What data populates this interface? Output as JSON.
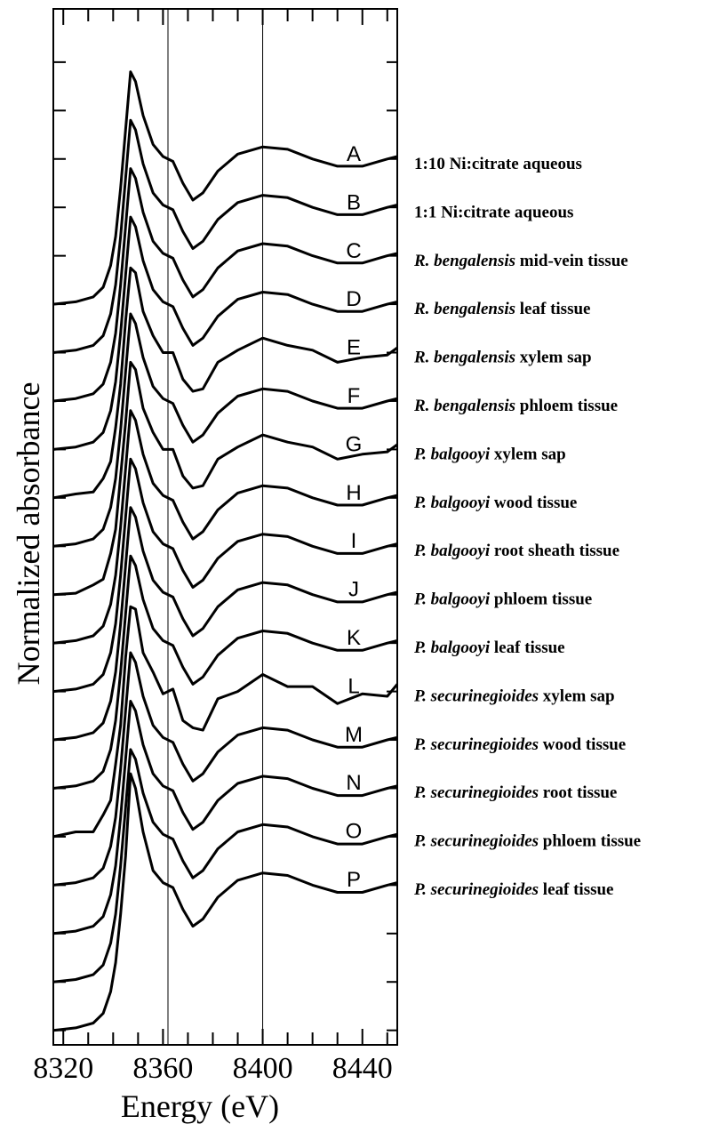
{
  "chart_data": {
    "type": "line",
    "x_label": "Energy (eV)",
    "y_label": "Normalized absorbance",
    "xlim": [
      8316,
      8454
    ],
    "ylim": [
      -0.3,
      21.1
    ],
    "xticks": [
      8320,
      8360,
      8400,
      8440
    ],
    "x_minor_ticks": [
      8330,
      8340,
      8350,
      8370,
      8380,
      8390,
      8410,
      8420,
      8430,
      8450
    ],
    "yticks": [
      0,
      1,
      2,
      3,
      4,
      5,
      6,
      7,
      8,
      9,
      10,
      11,
      12,
      13,
      14,
      15,
      16,
      17,
      18,
      19,
      20
    ],
    "vlines": [
      8362,
      8400
    ],
    "color": "#000000",
    "x": [
      8316,
      8325,
      8332,
      8336,
      8339,
      8341,
      8343,
      8345,
      8347,
      8349,
      8352,
      8356,
      8360,
      8364,
      8368,
      8372,
      8376,
      8382,
      8390,
      8400,
      8410,
      8420,
      8430,
      8440,
      8450,
      8454
    ],
    "series": [
      {
        "name": "A",
        "description": [
          "1:10 Ni:citrate aqueous"
        ],
        "values": [
          15,
          15.05,
          15.15,
          15.35,
          15.8,
          16.4,
          17.4,
          18.6,
          19.8,
          19.6,
          18.9,
          18.3,
          18.05,
          17.95,
          17.5,
          17.15,
          17.3,
          17.75,
          18.1,
          18.25,
          18.2,
          18.0,
          17.85,
          17.85,
          18.0,
          18.05
        ]
      },
      {
        "name": "B",
        "description": [
          "1:1 Ni:citrate aqueous"
        ],
        "values": [
          14,
          14.05,
          14.15,
          14.35,
          14.8,
          15.4,
          16.4,
          17.6,
          18.8,
          18.6,
          17.9,
          17.3,
          17.05,
          16.95,
          16.5,
          16.15,
          16.3,
          16.75,
          17.1,
          17.25,
          17.2,
          17.0,
          16.85,
          16.85,
          17.0,
          17.05
        ]
      },
      {
        "name": "C",
        "description": [
          "R. bengalensis",
          " mid-vein tissue"
        ],
        "values": [
          13,
          13.05,
          13.15,
          13.35,
          13.8,
          14.4,
          15.4,
          16.6,
          17.8,
          17.6,
          16.9,
          16.3,
          16.05,
          15.95,
          15.5,
          15.15,
          15.3,
          15.75,
          16.1,
          16.25,
          16.2,
          16.0,
          15.85,
          15.85,
          16.0,
          16.05
        ]
      },
      {
        "name": "D",
        "description": [
          "R. bengalensis",
          " leaf tissue"
        ],
        "values": [
          12,
          12.05,
          12.15,
          12.35,
          12.8,
          13.4,
          14.4,
          15.6,
          16.8,
          16.6,
          15.9,
          15.3,
          15.05,
          14.95,
          14.5,
          14.15,
          14.3,
          14.75,
          15.1,
          15.25,
          15.2,
          15.0,
          14.85,
          14.85,
          15.0,
          15.05
        ]
      },
      {
        "name": "E",
        "description": [
          "R. bengalensis",
          " xylem sap"
        ],
        "values": [
          11,
          11.08,
          11.12,
          11.4,
          11.75,
          12.45,
          13.35,
          14.65,
          15.75,
          15.65,
          14.85,
          14.35,
          14.0,
          14.0,
          13.45,
          13.2,
          13.25,
          13.8,
          14.05,
          14.3,
          14.15,
          14.05,
          13.8,
          13.9,
          13.95,
          14.1
        ]
      },
      {
        "name": "F",
        "description": [
          "R. bengalensis",
          " phloem tissue"
        ],
        "values": [
          10,
          10.05,
          10.15,
          10.35,
          10.8,
          11.4,
          12.4,
          13.6,
          14.8,
          14.6,
          13.9,
          13.3,
          13.05,
          12.95,
          12.5,
          12.15,
          12.3,
          12.75,
          13.1,
          13.25,
          13.2,
          13.0,
          12.85,
          12.85,
          13.0,
          13.05
        ]
      },
      {
        "name": "G",
        "description": [
          "P. balgooyi",
          " xylem sap"
        ],
        "values": [
          9,
          9.03,
          9.2,
          9.32,
          9.85,
          10.35,
          11.45,
          12.55,
          13.8,
          13.65,
          12.85,
          12.35,
          12.0,
          12.0,
          11.45,
          11.2,
          11.25,
          11.8,
          12.05,
          12.3,
          12.15,
          12.05,
          11.8,
          11.9,
          11.95,
          12.1
        ]
      },
      {
        "name": "H",
        "description": [
          "P. balgooyi",
          " wood tissue"
        ],
        "values": [
          8,
          8.05,
          8.15,
          8.35,
          8.8,
          9.4,
          10.4,
          11.6,
          12.8,
          12.6,
          11.9,
          11.3,
          11.05,
          10.95,
          10.5,
          10.15,
          10.3,
          10.75,
          11.1,
          11.25,
          11.2,
          11.0,
          10.85,
          10.85,
          11.0,
          11.05
        ]
      },
      {
        "name": "I",
        "description": [
          "P. balgooyi",
          " root sheath tissue"
        ],
        "values": [
          7,
          7.05,
          7.15,
          7.35,
          7.8,
          8.4,
          9.4,
          10.6,
          11.8,
          11.6,
          10.9,
          10.3,
          10.05,
          9.95,
          9.5,
          9.15,
          9.3,
          9.75,
          10.1,
          10.25,
          10.2,
          10.0,
          9.85,
          9.85,
          10.0,
          10.05
        ]
      },
      {
        "name": "J",
        "description": [
          "P. balgooyi",
          " phloem tissue"
        ],
        "values": [
          6,
          6.05,
          6.15,
          6.35,
          6.8,
          7.4,
          8.4,
          9.6,
          10.8,
          10.6,
          9.9,
          9.3,
          9.05,
          8.95,
          8.5,
          8.15,
          8.3,
          8.75,
          9.1,
          9.25,
          9.2,
          9.0,
          8.85,
          8.85,
          9.0,
          9.05
        ]
      },
      {
        "name": "K",
        "description": [
          "P. balgooyi",
          " leaf tissue"
        ],
        "values": [
          5,
          5.05,
          5.15,
          5.35,
          5.8,
          6.4,
          7.4,
          8.6,
          9.8,
          9.6,
          8.9,
          8.3,
          8.05,
          7.95,
          7.5,
          7.15,
          7.3,
          7.75,
          8.1,
          8.25,
          8.2,
          8.0,
          7.85,
          7.85,
          8.0,
          8.05
        ]
      },
      {
        "name": "L",
        "description": [
          "P. securinegioides",
          " xylem sap"
        ],
        "values": [
          4,
          4.1,
          4.1,
          4.45,
          4.75,
          5.5,
          6.3,
          7.7,
          8.75,
          8.7,
          7.8,
          7.4,
          6.95,
          7.05,
          6.4,
          6.25,
          6.2,
          6.85,
          7.0,
          7.35,
          7.1,
          7.1,
          6.75,
          6.95,
          6.9,
          7.15
        ]
      },
      {
        "name": "M",
        "description": [
          "P. securinegioides",
          " wood tissue"
        ],
        "values": [
          3,
          3.05,
          3.15,
          3.35,
          3.8,
          4.4,
          5.4,
          6.6,
          7.8,
          7.6,
          6.9,
          6.3,
          6.05,
          5.95,
          5.5,
          5.15,
          5.3,
          5.75,
          6.1,
          6.25,
          6.2,
          6.0,
          5.85,
          5.85,
          6.0,
          6.05
        ]
      },
      {
        "name": "N",
        "description": [
          "P. securinegioides",
          " root tissue"
        ],
        "values": [
          2,
          2.05,
          2.15,
          2.35,
          2.8,
          3.4,
          4.4,
          5.6,
          6.8,
          6.6,
          5.9,
          5.3,
          5.05,
          4.95,
          4.5,
          4.15,
          4.3,
          4.75,
          5.1,
          5.25,
          5.2,
          5.0,
          4.85,
          4.85,
          5.0,
          5.05
        ]
      },
      {
        "name": "O",
        "description": [
          "P. securinegioides",
          " phloem tissue"
        ],
        "values": [
          1,
          1.05,
          1.15,
          1.35,
          1.8,
          2.4,
          3.4,
          4.6,
          5.8,
          5.6,
          4.9,
          4.3,
          4.05,
          3.95,
          3.5,
          3.15,
          3.3,
          3.75,
          4.1,
          4.25,
          4.2,
          4.0,
          3.85,
          3.85,
          4.0,
          4.05
        ]
      },
      {
        "name": "P",
        "description": [
          "P. securinegioides",
          " leaf tissue"
        ],
        "values": [
          0,
          0.05,
          0.15,
          0.35,
          0.8,
          1.4,
          2.4,
          3.6,
          5.3,
          5.0,
          4.1,
          3.3,
          3.05,
          2.95,
          2.5,
          2.15,
          2.3,
          2.75,
          3.1,
          3.25,
          3.2,
          3.0,
          2.85,
          2.85,
          3.0,
          3.05
        ]
      }
    ]
  }
}
